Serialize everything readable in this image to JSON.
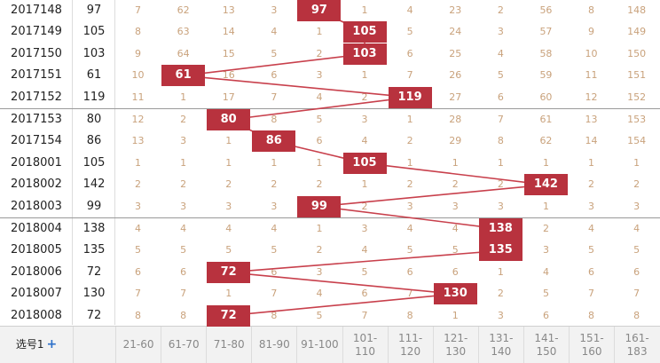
{
  "chart_data": {
    "type": "table",
    "columns": [
      "21-60",
      "61-70",
      "71-80",
      "81-90",
      "91-100",
      "101-110",
      "111-120",
      "121-130",
      "131-140",
      "141-150",
      "151-160",
      "161-183"
    ],
    "rows": [
      {
        "period": "2017148",
        "value": "97",
        "hit": 4,
        "cells": [
          "7",
          "62",
          "13",
          "3",
          "97",
          "1",
          "4",
          "23",
          "2",
          "56",
          "8",
          "148"
        ]
      },
      {
        "period": "2017149",
        "value": "105",
        "hit": 5,
        "cells": [
          "8",
          "63",
          "14",
          "4",
          "1",
          "105",
          "5",
          "24",
          "3",
          "57",
          "9",
          "149"
        ]
      },
      {
        "period": "2017150",
        "value": "103",
        "hit": 5,
        "cells": [
          "9",
          "64",
          "15",
          "5",
          "2",
          "103",
          "6",
          "25",
          "4",
          "58",
          "10",
          "150"
        ]
      },
      {
        "period": "2017151",
        "value": "61",
        "hit": 1,
        "cells": [
          "10",
          "61",
          "16",
          "6",
          "3",
          "1",
          "7",
          "26",
          "5",
          "59",
          "11",
          "151"
        ]
      },
      {
        "period": "2017152",
        "value": "119",
        "hit": 6,
        "cells": [
          "11",
          "1",
          "17",
          "7",
          "4",
          "2",
          "119",
          "27",
          "6",
          "60",
          "12",
          "152"
        ]
      },
      {
        "period": "2017153",
        "value": "80",
        "hit": 2,
        "cells": [
          "12",
          "2",
          "80",
          "8",
          "5",
          "3",
          "1",
          "28",
          "7",
          "61",
          "13",
          "153"
        ]
      },
      {
        "period": "2017154",
        "value": "86",
        "hit": 3,
        "cells": [
          "13",
          "3",
          "1",
          "86",
          "6",
          "4",
          "2",
          "29",
          "8",
          "62",
          "14",
          "154"
        ]
      },
      {
        "period": "2018001",
        "value": "105",
        "hit": 5,
        "cells": [
          "1",
          "1",
          "1",
          "1",
          "1",
          "105",
          "1",
          "1",
          "1",
          "1",
          "1",
          "1"
        ]
      },
      {
        "period": "2018002",
        "value": "142",
        "hit": 9,
        "cells": [
          "2",
          "2",
          "2",
          "2",
          "2",
          "1",
          "2",
          "2",
          "2",
          "142",
          "2",
          "2"
        ]
      },
      {
        "period": "2018003",
        "value": "99",
        "hit": 4,
        "cells": [
          "3",
          "3",
          "3",
          "3",
          "99",
          "2",
          "3",
          "3",
          "3",
          "1",
          "3",
          "3"
        ]
      },
      {
        "period": "2018004",
        "value": "138",
        "hit": 8,
        "cells": [
          "4",
          "4",
          "4",
          "4",
          "1",
          "3",
          "4",
          "4",
          "138",
          "2",
          "4",
          "4"
        ]
      },
      {
        "period": "2018005",
        "value": "135",
        "hit": 8,
        "cells": [
          "5",
          "5",
          "5",
          "5",
          "2",
          "4",
          "5",
          "5",
          "135",
          "3",
          "5",
          "5"
        ]
      },
      {
        "period": "2018006",
        "value": "72",
        "hit": 2,
        "cells": [
          "6",
          "6",
          "72",
          "6",
          "3",
          "5",
          "6",
          "6",
          "1",
          "4",
          "6",
          "6"
        ]
      },
      {
        "period": "2018007",
        "value": "130",
        "hit": 7,
        "cells": [
          "7",
          "7",
          "1",
          "7",
          "4",
          "6",
          "7",
          "130",
          "2",
          "5",
          "7",
          "7"
        ]
      },
      {
        "period": "2018008",
        "value": "72",
        "hit": 2,
        "cells": [
          "8",
          "8",
          "72",
          "8",
          "5",
          "7",
          "8",
          "1",
          "3",
          "6",
          "8",
          "8"
        ]
      }
    ],
    "line_color": "#c8404c",
    "hit_color": "#b8323e"
  },
  "footer": {
    "pick_label": "选号1",
    "pick_plus": "+"
  }
}
